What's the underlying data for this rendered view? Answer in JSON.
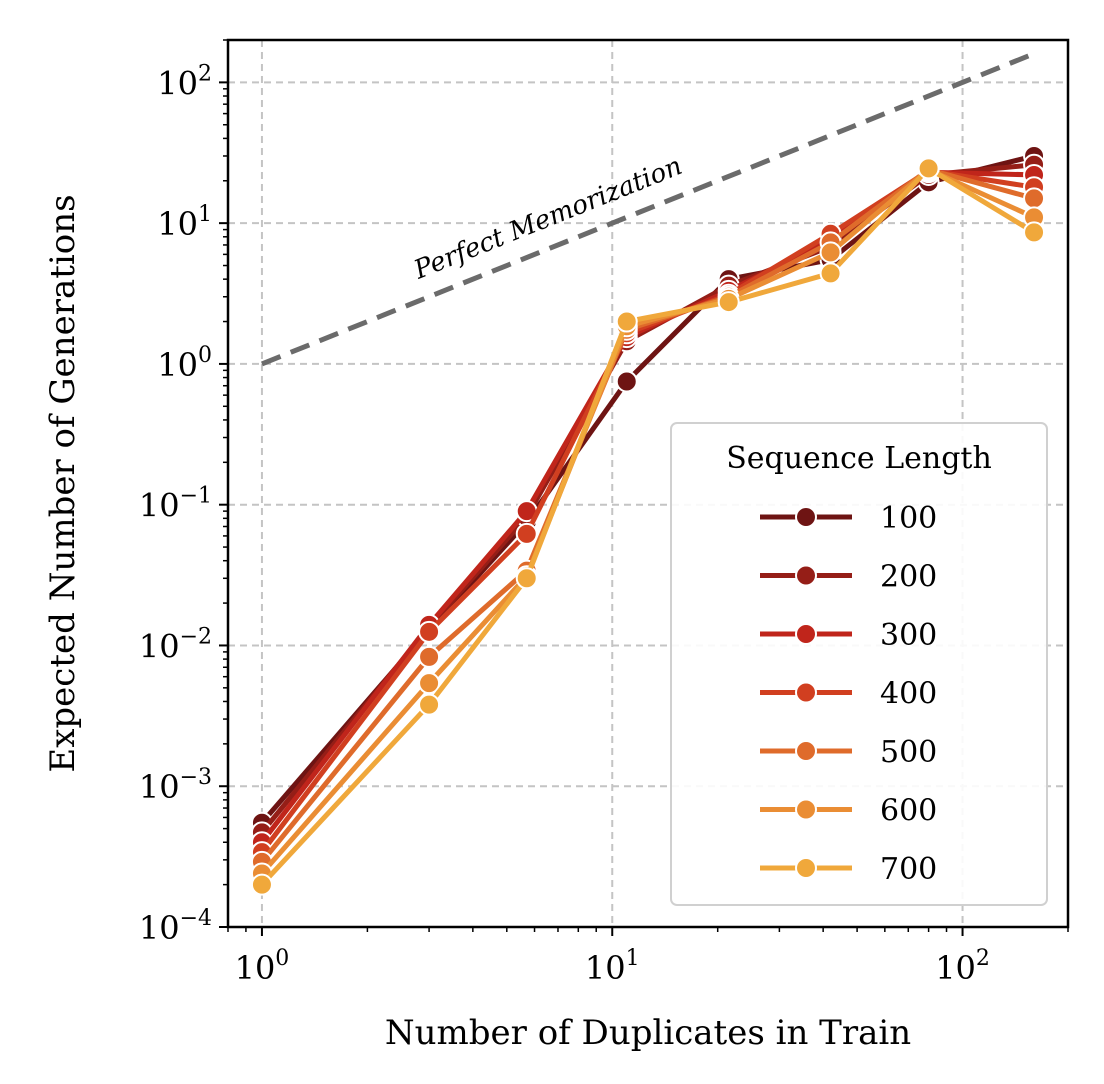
{
  "chart_data": {
    "type": "line",
    "title": "",
    "xlabel": "Number of Duplicates in Train",
    "ylabel": "Expected Number of Generations",
    "xscale": "log",
    "yscale": "log",
    "xlim": [
      0.8,
      200
    ],
    "ylim": [
      0.0001,
      200
    ],
    "grid": true,
    "x_ticks": [
      {
        "value": 1,
        "base": "10",
        "exp": "0"
      },
      {
        "value": 10,
        "base": "10",
        "exp": "1"
      },
      {
        "value": 100,
        "base": "10",
        "exp": "2"
      }
    ],
    "y_ticks": [
      {
        "value": 0.0001,
        "base": "10",
        "exp": "−4"
      },
      {
        "value": 0.001,
        "base": "10",
        "exp": "−3"
      },
      {
        "value": 0.01,
        "base": "10",
        "exp": "−2"
      },
      {
        "value": 0.1,
        "base": "10",
        "exp": "−1"
      },
      {
        "value": 1,
        "base": "10",
        "exp": "0"
      },
      {
        "value": 10,
        "base": "10",
        "exp": "1"
      },
      {
        "value": 100,
        "base": "10",
        "exp": "2"
      }
    ],
    "reference_line": {
      "label": "Perfect Memorization",
      "x": [
        1,
        160
      ],
      "y": [
        1,
        160
      ],
      "color": "#6b6b6b"
    },
    "legend": {
      "title": "Sequence Length",
      "location": "lower-right"
    },
    "x": [
      1,
      3,
      5.7,
      11,
      21.5,
      42,
      80,
      160
    ],
    "series": [
      {
        "name": "100",
        "color": "#6e1413",
        "values": [
          0.00055,
          0.013,
          0.075,
          0.75,
          4.0,
          5.5,
          19.5,
          30
        ]
      },
      {
        "name": "200",
        "color": "#951e17",
        "values": [
          0.00047,
          0.0135,
          0.082,
          1.45,
          3.6,
          6.8,
          22,
          26
        ]
      },
      {
        "name": "300",
        "color": "#c0251b",
        "values": [
          0.0004,
          0.014,
          0.09,
          1.55,
          3.3,
          7.6,
          23,
          22
        ]
      },
      {
        "name": "400",
        "color": "#d13f20",
        "values": [
          0.00034,
          0.0125,
          0.062,
          1.65,
          3.1,
          8.4,
          23.5,
          18
        ]
      },
      {
        "name": "500",
        "color": "#df6b2b",
        "values": [
          0.00029,
          0.0083,
          0.034,
          1.75,
          3.0,
          7.3,
          24,
          15
        ]
      },
      {
        "name": "600",
        "color": "#ea8d34",
        "values": [
          0.00024,
          0.0054,
          0.031,
          1.85,
          2.9,
          6.2,
          24,
          11
        ]
      },
      {
        "name": "700",
        "color": "#f0a83b",
        "values": [
          0.0002,
          0.0038,
          0.03,
          2.0,
          2.75,
          4.4,
          24.5,
          8.6
        ]
      }
    ]
  }
}
